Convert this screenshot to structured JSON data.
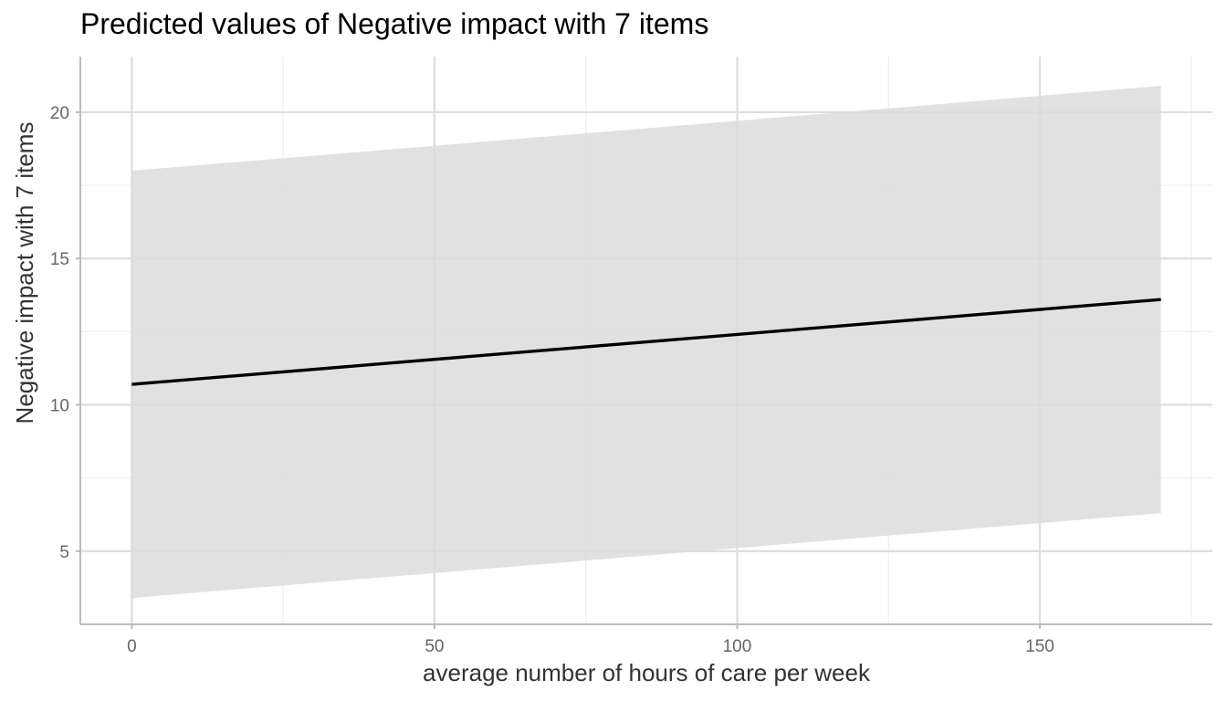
{
  "chart_data": {
    "type": "line",
    "title": "Predicted values of Negative impact with 7 items",
    "xlabel": "average number of hours of care per week",
    "ylabel": "Negative impact with 7 items",
    "xlim": [
      -8.5,
      178.5
    ],
    "ylim": [
      2.5,
      21.9
    ],
    "x_major_ticks": [
      0,
      50,
      100,
      150
    ],
    "x_minor_ticks": [
      25,
      75,
      125,
      175
    ],
    "y_major_ticks": [
      5,
      10,
      15,
      20
    ],
    "y_minor_ticks": [
      7.5,
      12.5,
      17.5
    ],
    "x_tick_labels": [
      "0",
      "50",
      "100",
      "150"
    ],
    "y_tick_labels": [
      "5",
      "10",
      "15",
      "20"
    ],
    "grid": true,
    "series": [
      {
        "name": "predicted",
        "x": [
          0,
          170
        ],
        "values": [
          10.7,
          13.6
        ],
        "ci_lower": [
          3.4,
          6.3
        ],
        "ci_upper": [
          18.0,
          20.9
        ],
        "line_color": "#000000",
        "band_color": "#dcdcdc"
      }
    ],
    "colors": {
      "grid_major": "#dedede",
      "grid_minor": "#eeeeee",
      "axis": "#bbbbbb",
      "tick_text": "#666666"
    }
  }
}
